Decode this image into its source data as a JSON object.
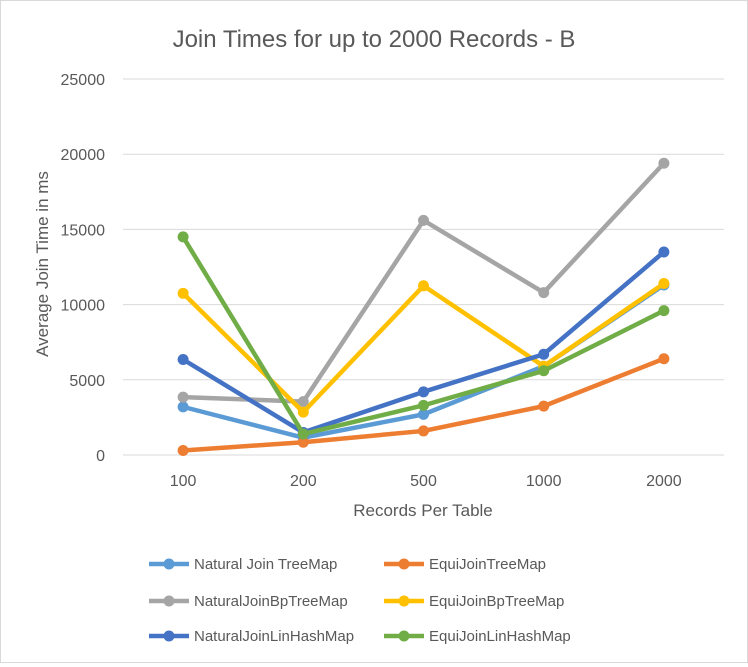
{
  "chart_data": {
    "type": "line",
    "title": "Join Times for up to 2000 Records - B",
    "xlabel": "Records Per Table",
    "ylabel": "Average Join Time in ms",
    "categories": [
      "100",
      "200",
      "500",
      "1000",
      "2000"
    ],
    "ylim": [
      0,
      25000
    ],
    "yticks": [
      0,
      5000,
      10000,
      15000,
      20000,
      25000
    ],
    "grid": true,
    "legend_position": "bottom",
    "series": [
      {
        "name": "Natural Join TreeMap",
        "color": "#5b9bd5",
        "values": [
          3200,
          1150,
          2700,
          5900,
          11300
        ]
      },
      {
        "name": "EquiJoinTreeMap",
        "color": "#ed7d31",
        "values": [
          300,
          850,
          1600,
          3250,
          6400
        ]
      },
      {
        "name": "NaturalJoinBpTreeMap",
        "color": "#a5a5a5",
        "values": [
          3850,
          3550,
          15600,
          10800,
          19400
        ]
      },
      {
        "name": "EquiJoinBpTreeMap",
        "color": "#ffc000",
        "values": [
          10750,
          2850,
          11250,
          5900,
          11400
        ]
      },
      {
        "name": "NaturalJoinLinHashMap",
        "color": "#4472c4",
        "values": [
          6350,
          1500,
          4200,
          6700,
          13500
        ]
      },
      {
        "name": "EquiJoinLinHashMap",
        "color": "#70ad47",
        "values": [
          14500,
          1400,
          3300,
          5600,
          9600
        ]
      }
    ]
  }
}
